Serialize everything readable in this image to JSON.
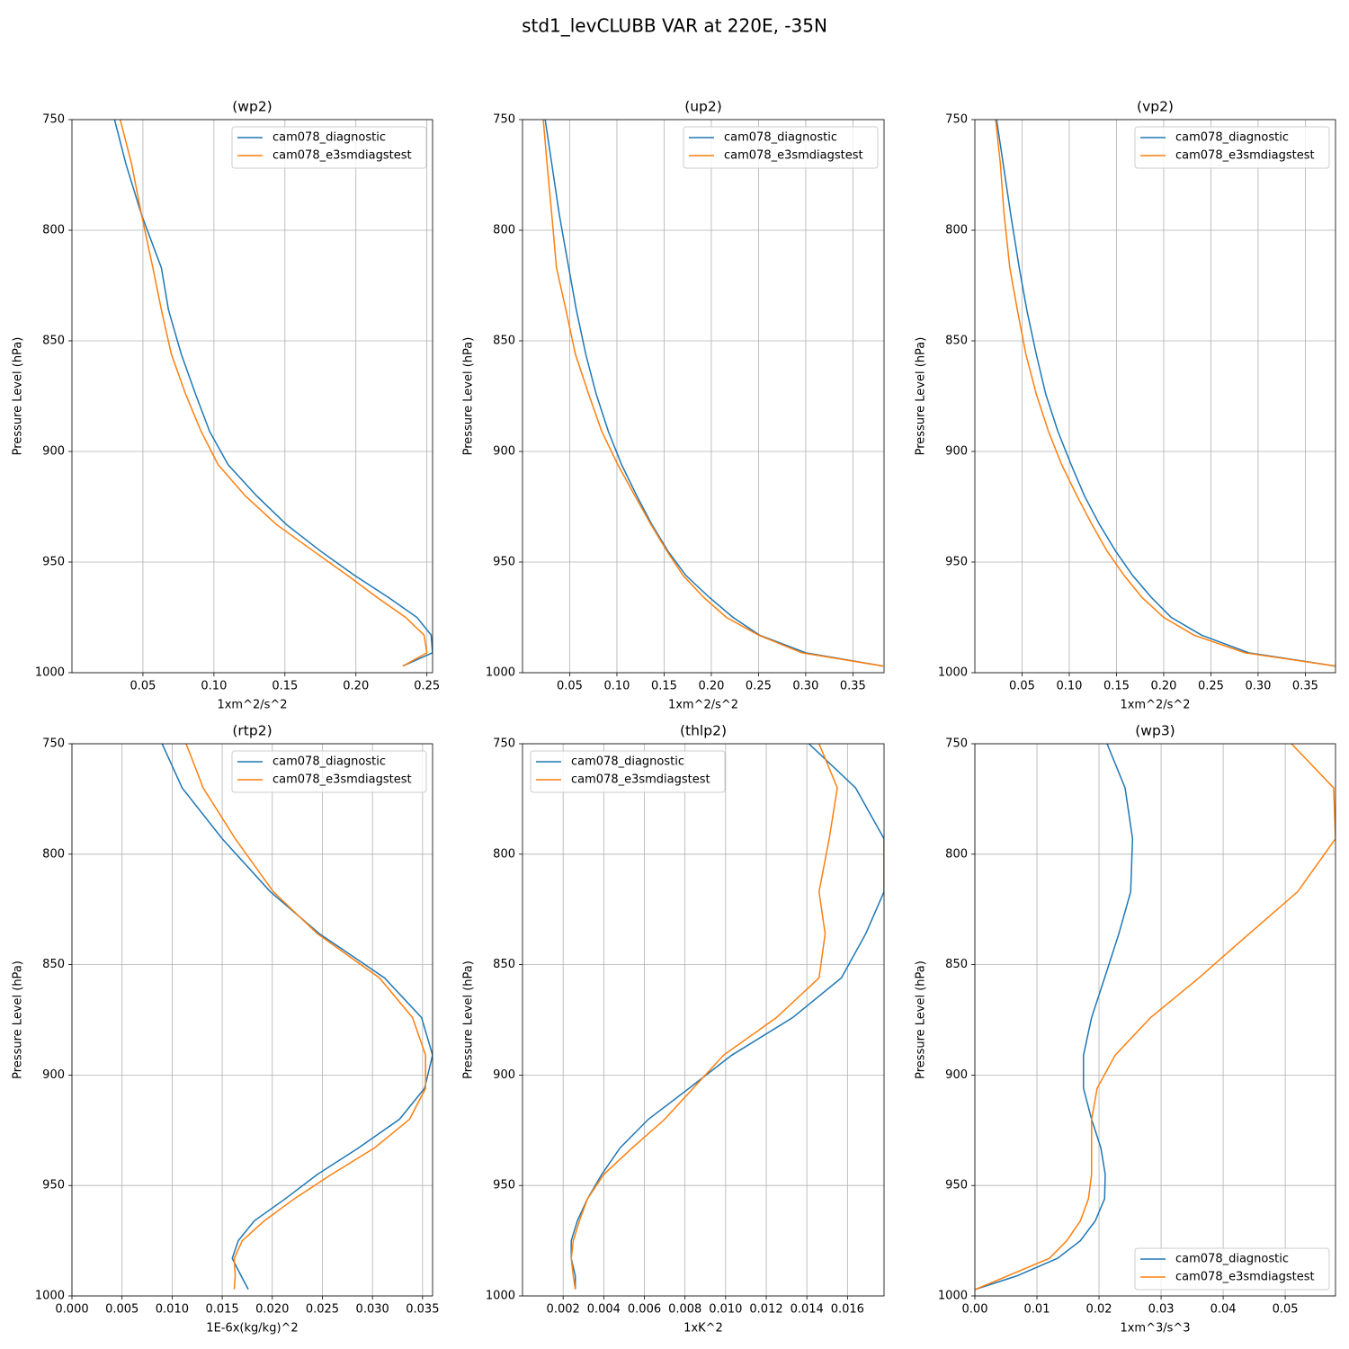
{
  "title": "std1_levCLUBB VAR at 220E, -35N",
  "chart_data": [
    {
      "type": "line",
      "title": "(wp2)",
      "xlabel": "1xm^2/s^2",
      "ylabel": "Pressure Level (hPa)",
      "y": [
        750,
        770,
        793,
        817,
        836,
        856,
        874,
        891,
        906,
        920,
        933,
        945,
        956,
        966,
        975,
        983,
        991,
        997
      ],
      "series": [
        {
          "name": "cam078_diagnostic",
          "color": "#1f77b4",
          "values": [
            0.03,
            0.038,
            0.049,
            0.063,
            0.068,
            0.077,
            0.087,
            0.097,
            0.11,
            0.13,
            0.151,
            0.175,
            0.199,
            0.223,
            0.243,
            0.253,
            0.254,
            0.233
          ]
        },
        {
          "name": "cam078_e3smdiagstest",
          "color": "#ff7f0e",
          "values": [
            0.034,
            0.042,
            0.049,
            0.057,
            0.063,
            0.07,
            0.08,
            0.091,
            0.103,
            0.122,
            0.144,
            0.17,
            0.194,
            0.215,
            0.235,
            0.248,
            0.25,
            0.233
          ]
        }
      ],
      "xlim": [
        0,
        0.254
      ],
      "xticks": [
        0.05,
        {
          "value": 0.1,
          "label": "0.10"
        },
        0.15,
        {
          "value": 0.2,
          "label": "0.20"
        },
        0.25
      ],
      "ylim": [
        1000,
        750
      ],
      "yticks": [
        750,
        800,
        850,
        900,
        950,
        1000
      ],
      "grid": true,
      "legend": "upper right"
    },
    {
      "type": "line",
      "title": "(up2)",
      "xlabel": "1xm^2/s^2",
      "ylabel": "Pressure Level (hPa)",
      "y": [
        750,
        770,
        793,
        817,
        836,
        856,
        874,
        891,
        906,
        920,
        933,
        945,
        956,
        966,
        975,
        983,
        991,
        997
      ],
      "series": [
        {
          "name": "cam078_diagnostic",
          "color": "#1f77b4",
          "values": [
            0.024,
            0.031,
            0.039,
            0.049,
            0.057,
            0.067,
            0.078,
            0.091,
            0.105,
            0.121,
            0.137,
            0.154,
            0.173,
            0.198,
            0.223,
            0.251,
            0.3,
            0.382
          ]
        },
        {
          "name": "cam078_e3smdiagstest",
          "color": "#ff7f0e",
          "values": [
            0.022,
            0.026,
            0.031,
            0.036,
            0.046,
            0.056,
            0.07,
            0.084,
            0.101,
            0.119,
            0.136,
            0.153,
            0.17,
            0.192,
            0.216,
            0.25,
            0.296,
            0.382
          ]
        }
      ],
      "xlim": [
        0,
        0.383
      ],
      "xticks": [
        0.05,
        {
          "value": 0.1,
          "label": "0.10"
        },
        0.15,
        {
          "value": 0.2,
          "label": "0.20"
        },
        0.25,
        {
          "value": 0.3,
          "label": "0.30"
        },
        0.35
      ],
      "ylim": [
        1000,
        750
      ],
      "yticks": [
        750,
        800,
        850,
        900,
        950,
        1000
      ],
      "grid": true,
      "legend": "upper right"
    },
    {
      "type": "line",
      "title": "(vp2)",
      "xlabel": "1xm^2/s^2",
      "ylabel": "Pressure Level (hPa)",
      "y": [
        750,
        770,
        793,
        817,
        836,
        856,
        874,
        891,
        906,
        920,
        933,
        945,
        956,
        966,
        975,
        983,
        991,
        997
      ],
      "series": [
        {
          "name": "cam078_diagnostic",
          "color": "#1f77b4",
          "values": [
            0.023,
            0.03,
            0.038,
            0.047,
            0.055,
            0.065,
            0.075,
            0.088,
            0.102,
            0.116,
            0.132,
            0.149,
            0.167,
            0.187,
            0.208,
            0.24,
            0.29,
            0.382
          ]
        },
        {
          "name": "cam078_e3smdiagstest",
          "color": "#ff7f0e",
          "values": [
            0.022,
            0.027,
            0.031,
            0.037,
            0.045,
            0.054,
            0.065,
            0.078,
            0.092,
            0.108,
            0.124,
            0.14,
            0.158,
            0.177,
            0.2,
            0.232,
            0.286,
            0.382
          ]
        }
      ],
      "xlim": [
        0,
        0.382
      ],
      "xticks": [
        0.05,
        {
          "value": 0.1,
          "label": "0.10"
        },
        0.15,
        {
          "value": 0.2,
          "label": "0.20"
        },
        0.25,
        {
          "value": 0.3,
          "label": "0.30"
        },
        0.35
      ],
      "ylim": [
        1000,
        750
      ],
      "yticks": [
        750,
        800,
        850,
        900,
        950,
        1000
      ],
      "grid": true,
      "legend": "upper right"
    },
    {
      "type": "line",
      "title": "(rtp2)",
      "xlabel": "1E-6x(kg/kg)^2",
      "ylabel": "Pressure Level (hPa)",
      "y": [
        750,
        770,
        793,
        817,
        836,
        856,
        874,
        891,
        906,
        920,
        933,
        945,
        956,
        966,
        975,
        983,
        991,
        997
      ],
      "series": [
        {
          "name": "cam078_diagnostic",
          "color": "#1f77b4",
          "values": [
            0.009,
            0.011,
            0.015,
            0.0198,
            0.0247,
            0.0312,
            0.0349,
            0.036,
            0.0352,
            0.0327,
            0.0286,
            0.0245,
            0.0213,
            0.0182,
            0.0166,
            0.016,
            0.0169,
            0.0176
          ]
        },
        {
          "name": "cam078_e3smdiagstest",
          "color": "#ff7f0e",
          "values": [
            0.0114,
            0.0131,
            0.0163,
            0.0201,
            0.0245,
            0.0307,
            0.034,
            0.0353,
            0.0353,
            0.0337,
            0.0302,
            0.0259,
            0.0222,
            0.0192,
            0.017,
            0.0162,
            0.0163,
            0.0162
          ]
        }
      ],
      "xlim": [
        0,
        0.036
      ],
      "xticks": [
        {
          "value": 0,
          "label": "0.000"
        },
        0.005,
        {
          "value": 0.01,
          "label": "0.010"
        },
        0.015,
        {
          "value": 0.02,
          "label": "0.020"
        },
        0.025,
        {
          "value": 0.03,
          "label": "0.030"
        },
        0.035
      ],
      "ylim": [
        1000,
        750
      ],
      "yticks": [
        750,
        800,
        850,
        900,
        950,
        1000
      ],
      "grid": true,
      "legend": "upper right"
    },
    {
      "type": "line",
      "title": "(thlp2)",
      "xlabel": "1xK^2",
      "ylabel": "Pressure Level (hPa)",
      "y": [
        750,
        770,
        793,
        817,
        836,
        856,
        874,
        891,
        906,
        920,
        933,
        945,
        956,
        966,
        975,
        983,
        991,
        997
      ],
      "series": [
        {
          "name": "cam078_diagnostic",
          "color": "#1f77b4",
          "values": [
            0.0141,
            0.0164,
            0.0178,
            0.0178,
            0.0169,
            0.0157,
            0.0133,
            0.0103,
            0.0082,
            0.0062,
            0.0048,
            0.0039,
            0.0032,
            0.0027,
            0.0024,
            0.0024,
            0.0026,
            0.0026
          ]
        },
        {
          "name": "cam078_e3smdiagstest",
          "color": "#ff7f0e",
          "values": [
            0.0146,
            0.0155,
            0.0151,
            0.0146,
            0.0149,
            0.0146,
            0.0125,
            0.0099,
            0.0084,
            0.007,
            0.0054,
            0.004,
            0.0032,
            0.0028,
            0.0025,
            0.0024,
            0.0025,
            0.0026
          ]
        }
      ],
      "xlim": [
        0,
        0.0178
      ],
      "xticks": [
        0.002,
        0.004,
        0.006,
        0.008,
        {
          "value": 0.01,
          "label": "0.010"
        },
        0.012,
        0.014,
        0.016
      ],
      "ylim": [
        1000,
        750
      ],
      "yticks": [
        750,
        800,
        850,
        900,
        950,
        1000
      ],
      "grid": true,
      "legend": "upper left"
    },
    {
      "type": "line",
      "title": "(wp3)",
      "xlabel": "1xm^3/s^3",
      "ylabel": "Pressure Level (hPa)",
      "y": [
        750,
        770,
        793,
        817,
        836,
        856,
        874,
        891,
        906,
        920,
        933,
        945,
        956,
        966,
        975,
        983,
        991,
        997
      ],
      "series": [
        {
          "name": "cam078_diagnostic",
          "color": "#1f77b4",
          "values": [
            0.0213,
            0.0242,
            0.0254,
            0.0251,
            0.0232,
            0.0209,
            0.0188,
            0.0175,
            0.0175,
            0.0188,
            0.0203,
            0.021,
            0.0209,
            0.0194,
            0.017,
            0.0133,
            0.0067,
            0.0001
          ]
        },
        {
          "name": "cam078_e3smdiagstest",
          "color": "#ff7f0e",
          "values": [
            0.051,
            0.0578,
            0.0581,
            0.052,
            0.0442,
            0.0361,
            0.0283,
            0.0226,
            0.0197,
            0.0188,
            0.0188,
            0.0188,
            0.0183,
            0.017,
            0.0148,
            0.012,
            0.0052,
            0.0001
          ]
        }
      ],
      "xlim": [
        0,
        0.0581
      ],
      "xticks": [
        {
          "value": 0,
          "label": "0.00"
        },
        0.01,
        0.02,
        0.03,
        0.04,
        0.05
      ],
      "ylim": [
        1000,
        750
      ],
      "yticks": [
        750,
        800,
        850,
        900,
        950,
        1000
      ],
      "grid": true,
      "legend": "lower right"
    }
  ]
}
